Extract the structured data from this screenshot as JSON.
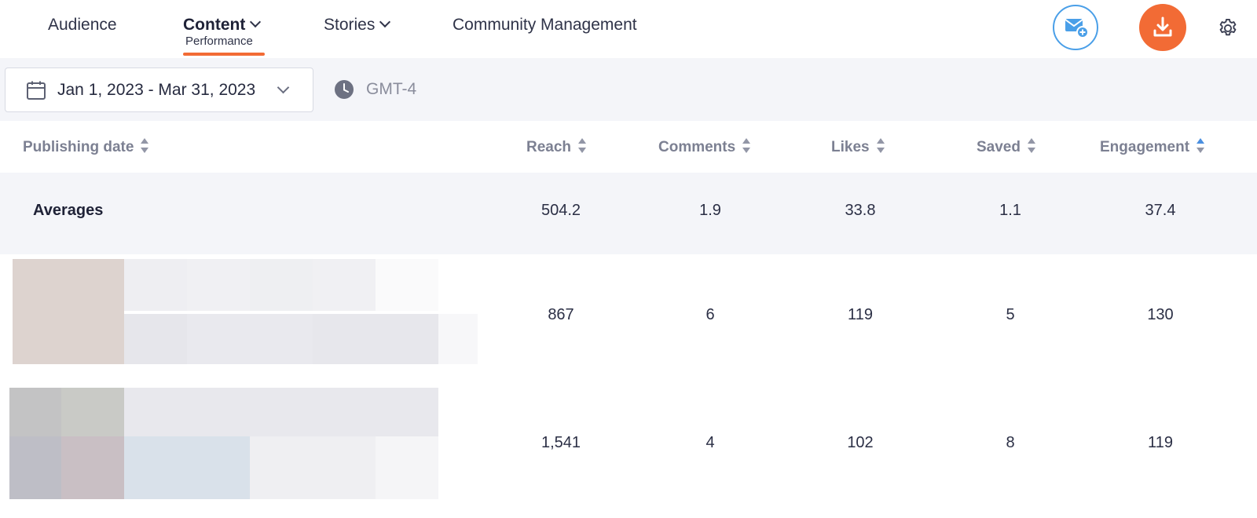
{
  "nav": {
    "audience": "Audience",
    "content": "Content",
    "content_sub": "Performance",
    "stories": "Stories",
    "community": "Community Management"
  },
  "filters": {
    "date_range": "Jan 1, 2023 - Mar 31, 2023",
    "timezone": "GMT-4"
  },
  "table": {
    "headers": {
      "publishing_date": "Publishing date",
      "reach": "Reach",
      "comments": "Comments",
      "likes": "Likes",
      "saved": "Saved",
      "engagement": "Engagement"
    },
    "averages": {
      "label": "Averages",
      "reach": "504.2",
      "comments": "1.9",
      "likes": "33.8",
      "saved": "1.1",
      "engagement": "37.4"
    },
    "rows": [
      {
        "reach": "867",
        "comments": "6",
        "likes": "119",
        "saved": "5",
        "engagement": "130"
      },
      {
        "reach": "1,541",
        "comments": "4",
        "likes": "102",
        "saved": "8",
        "engagement": "119"
      }
    ]
  },
  "icons": {
    "mail": "mail-plus-icon",
    "download": "download-icon",
    "settings": "gear-icon",
    "calendar": "calendar-icon",
    "clock": "clock-icon"
  },
  "colors": {
    "accent": "#f26b35",
    "mail_blue": "#4a9fe8",
    "sort_active": "#4a8fe0"
  }
}
